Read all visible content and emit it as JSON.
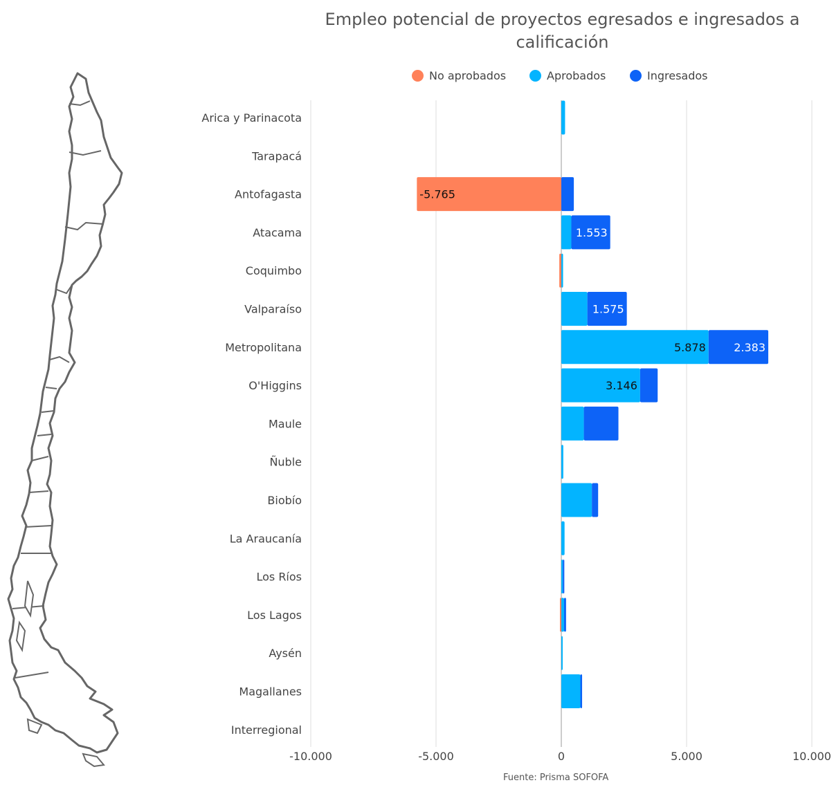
{
  "chart_data": {
    "type": "bar",
    "orientation": "horizontal",
    "stacked": true,
    "title": "Empleo potencial de proyectos egresados e ingresados a calificación",
    "categories": [
      "Arica y Parinacota",
      "Tarapacá",
      "Antofagasta",
      "Atacama",
      "Coquimbo",
      "Valparaíso",
      "Metropolitana",
      "O'Higgins",
      "Maule",
      "Ñuble",
      "Biobío",
      "La Araucanía",
      "Los Ríos",
      "Los Lagos",
      "Aysén",
      "Magallanes",
      "Interregional"
    ],
    "series": [
      {
        "name": "No aprobados",
        "color": "#FF8159",
        "values": [
          0,
          0,
          -5765,
          0,
          -80,
          0,
          0,
          0,
          0,
          0,
          0,
          0,
          0,
          -40,
          0,
          0,
          0
        ],
        "labels": [
          "",
          "",
          "-5.765",
          "",
          "",
          "",
          "",
          "",
          "",
          "",
          "",
          "",
          "",
          "",
          "",
          "",
          ""
        ]
      },
      {
        "name": "Aprobados",
        "color": "#03B4FF",
        "values": [
          150,
          0,
          0,
          400,
          70,
          1040,
          5878,
          3146,
          900,
          80,
          1220,
          130,
          60,
          110,
          25,
          760,
          0
        ],
        "labels": [
          "",
          "",
          "",
          "",
          "",
          "",
          "5.878",
          "3.146",
          "",
          "",
          "",
          "",
          "",
          "",
          "",
          "",
          ""
        ]
      },
      {
        "name": "Ingresados",
        "color": "#0D63F7",
        "values": [
          0,
          0,
          500,
          1553,
          0,
          1575,
          2383,
          700,
          1380,
          0,
          250,
          0,
          60,
          80,
          0,
          70,
          0
        ],
        "labels": [
          "",
          "",
          "",
          "1.553",
          "",
          "1.575",
          "2.383",
          "",
          "",
          "",
          "",
          "",
          "",
          "",
          "",
          "",
          ""
        ]
      }
    ],
    "xlim": [
      -10000,
      10000
    ],
    "xticks": [
      -10000,
      -5000,
      0,
      5000,
      10000
    ],
    "xtick_labels": [
      "-10.000",
      "-5.000",
      "0",
      "5.000",
      "10.000"
    ],
    "grid": true,
    "legend": "top"
  },
  "source": "Fuente: Prisma SOFOFA"
}
